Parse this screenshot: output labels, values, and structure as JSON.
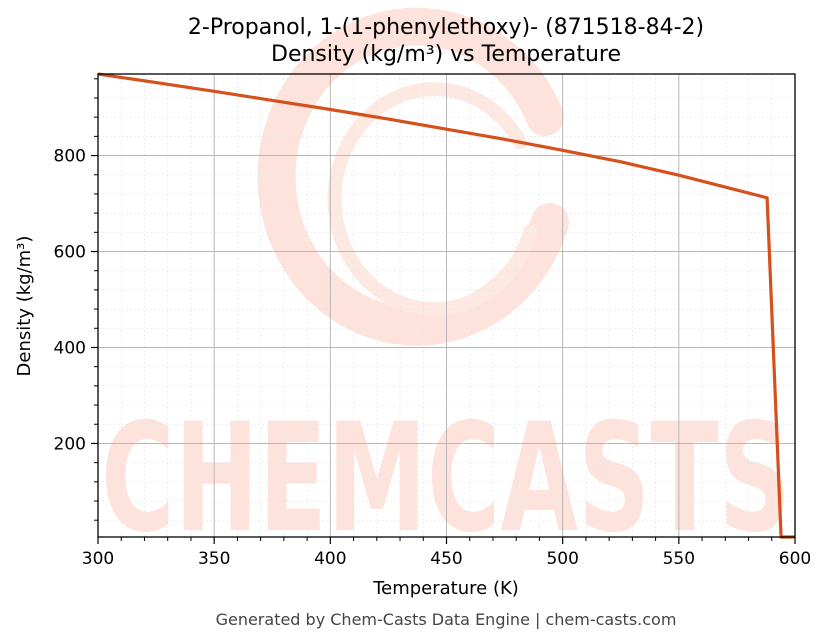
{
  "chart_data": {
    "type": "line",
    "title": "2-Propanol, 1-(1-phenylethoxy)- (871518-84-2)",
    "subtitle": "Density (kg/m³) vs Temperature",
    "xlabel": "Temperature (K)",
    "ylabel": "Density (kg/m³)",
    "xlim": [
      300,
      600
    ],
    "ylim": [
      5,
      970
    ],
    "x_ticks": [
      300,
      350,
      400,
      450,
      500,
      550,
      600
    ],
    "y_ticks": [
      200,
      400,
      600,
      800
    ],
    "grid": true,
    "line_color": "#d4511e",
    "series": [
      {
        "x": [
          300,
          325,
          350,
          375,
          400,
          425,
          450,
          475,
          500,
          525,
          550,
          575,
          588,
          594,
          600
        ],
        "values": [
          970,
          952,
          934,
          915,
          896,
          876,
          855,
          834,
          811,
          787,
          759,
          728,
          712,
          5,
          5
        ]
      }
    ]
  },
  "watermark": {
    "text": "CHEMCASTS",
    "color": "#fde3dc"
  },
  "footer": "Generated by Chem-Casts Data Engine | chem-casts.com"
}
